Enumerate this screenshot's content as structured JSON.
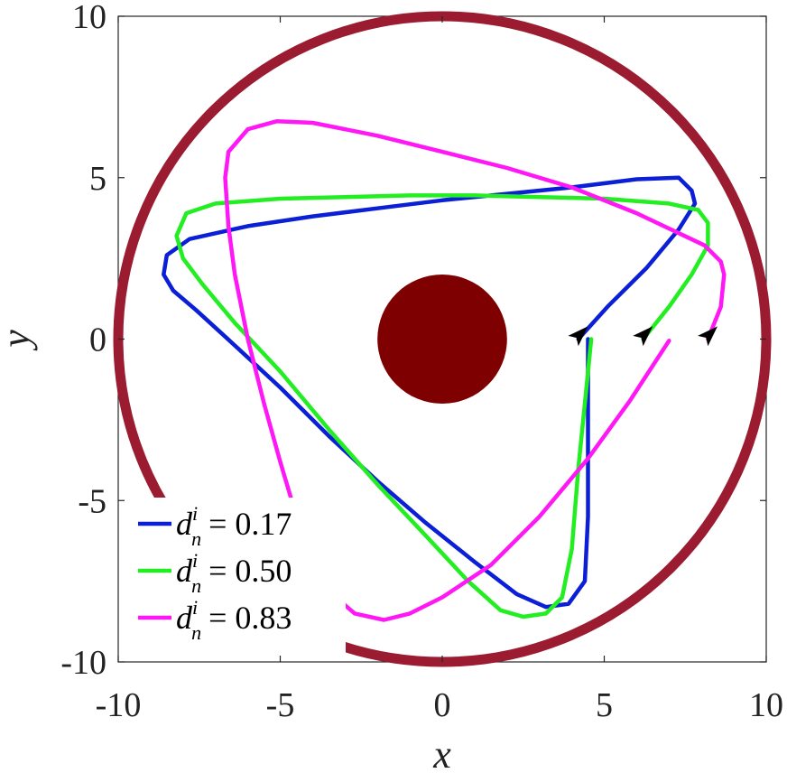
{
  "chart_data": {
    "type": "line",
    "title": "",
    "xlabel": "x",
    "ylabel": "y",
    "xlim": [
      -10,
      10
    ],
    "ylim": [
      -10,
      10
    ],
    "xticks": [
      "-10",
      "-5",
      "0",
      "5",
      "10"
    ],
    "yticks": [
      "-10",
      "-5",
      "0",
      "5",
      "10"
    ],
    "grid": false,
    "legend_position": "bottom-left",
    "boundary": {
      "shape": "circle",
      "center": [
        0,
        0
      ],
      "radius": 10,
      "color": "#9b1b30"
    },
    "obstacle": {
      "shape": "disk",
      "center": [
        0,
        0
      ],
      "radius": 2,
      "color": "#7f0000"
    },
    "series": [
      {
        "name": "d_n^i = 0.17",
        "legend": {
          "lhs": "d",
          "sub": "n",
          "sup": "i",
          "rhs": "= 0.17"
        },
        "color": "#0a1fd6",
        "points": [
          [
            4.2,
            0
          ],
          [
            5.1,
            1.0
          ],
          [
            6.3,
            2.2
          ],
          [
            7.3,
            3.4
          ],
          [
            7.8,
            4.2
          ],
          [
            7.7,
            4.6
          ],
          [
            7.3,
            5.0
          ],
          [
            6.0,
            4.95
          ],
          [
            4.0,
            4.7
          ],
          [
            2.0,
            4.5
          ],
          [
            0,
            4.3
          ],
          [
            -2.0,
            4.05
          ],
          [
            -4.0,
            3.8
          ],
          [
            -6.0,
            3.5
          ],
          [
            -7.8,
            3.1
          ],
          [
            -8.5,
            2.6
          ],
          [
            -8.6,
            2.0
          ],
          [
            -8.3,
            1.5
          ],
          [
            -7.6,
            0.9
          ],
          [
            -6.4,
            -0.2
          ],
          [
            -5.0,
            -1.5
          ],
          [
            -3.5,
            -3.0
          ],
          [
            -2.0,
            -4.4
          ],
          [
            -0.5,
            -5.7
          ],
          [
            1.0,
            -6.9
          ],
          [
            2.3,
            -7.9
          ],
          [
            3.2,
            -8.3
          ],
          [
            3.9,
            -8.2
          ],
          [
            4.4,
            -7.5
          ],
          [
            4.5,
            -5.5
          ],
          [
            4.5,
            -2.5
          ],
          [
            4.5,
            0
          ]
        ]
      },
      {
        "name": "d_n^i = 0.50",
        "legend": {
          "lhs": "d",
          "sub": "n",
          "sup": "i",
          "rhs": "= 0.50"
        },
        "color": "#22ee22",
        "points": [
          [
            6.2,
            0
          ],
          [
            7.0,
            1.0
          ],
          [
            7.7,
            2.0
          ],
          [
            8.2,
            2.9
          ],
          [
            8.2,
            3.6
          ],
          [
            7.9,
            4.0
          ],
          [
            7.0,
            4.2
          ],
          [
            5.0,
            4.35
          ],
          [
            3.0,
            4.4
          ],
          [
            1.0,
            4.45
          ],
          [
            -1.0,
            4.45
          ],
          [
            -3.0,
            4.4
          ],
          [
            -5.0,
            4.35
          ],
          [
            -7.0,
            4.2
          ],
          [
            -7.9,
            3.9
          ],
          [
            -8.2,
            3.2
          ],
          [
            -8.0,
            2.5
          ],
          [
            -7.4,
            1.7
          ],
          [
            -6.4,
            0.5
          ],
          [
            -5.0,
            -1.0
          ],
          [
            -3.5,
            -2.8
          ],
          [
            -2.0,
            -4.5
          ],
          [
            -0.5,
            -6.1
          ],
          [
            0.8,
            -7.5
          ],
          [
            1.8,
            -8.4
          ],
          [
            2.5,
            -8.6
          ],
          [
            3.2,
            -8.5
          ],
          [
            3.7,
            -8.0
          ],
          [
            4.0,
            -6.5
          ],
          [
            4.2,
            -4.0
          ],
          [
            4.4,
            -2.0
          ],
          [
            4.6,
            0
          ]
        ]
      },
      {
        "name": "d_n^i = 0.83",
        "legend": {
          "lhs": "d",
          "sub": "n",
          "sup": "i",
          "rhs": "= 0.83"
        },
        "color": "#ff17f5",
        "points": [
          [
            8.2,
            0
          ],
          [
            8.6,
            1.0
          ],
          [
            8.7,
            2.0
          ],
          [
            8.6,
            2.4
          ],
          [
            8.1,
            2.9
          ],
          [
            6.0,
            3.9
          ],
          [
            4.0,
            4.7
          ],
          [
            2.0,
            5.3
          ],
          [
            0,
            5.8
          ],
          [
            -2.0,
            6.3
          ],
          [
            -4.0,
            6.7
          ],
          [
            -5.1,
            6.75
          ],
          [
            -6.0,
            6.5
          ],
          [
            -6.6,
            5.8
          ],
          [
            -6.7,
            5.0
          ],
          [
            -6.6,
            3.5
          ],
          [
            -6.4,
            2.0
          ],
          [
            -6.0,
            0
          ],
          [
            -5.5,
            -2.0
          ],
          [
            -5.0,
            -3.8
          ],
          [
            -4.5,
            -5.5
          ],
          [
            -4.0,
            -6.8
          ],
          [
            -3.4,
            -7.9
          ],
          [
            -2.7,
            -8.5
          ],
          [
            -1.8,
            -8.7
          ],
          [
            -1.0,
            -8.5
          ],
          [
            0,
            -8.0
          ],
          [
            1.5,
            -7.0
          ],
          [
            3.0,
            -5.5
          ],
          [
            4.5,
            -3.7
          ],
          [
            5.8,
            -1.9
          ],
          [
            7.0,
            -0.05
          ]
        ]
      }
    ],
    "arrowheads": [
      [
        4.2,
        0.1
      ],
      [
        6.2,
        0.1
      ],
      [
        8.2,
        0.1
      ]
    ]
  }
}
